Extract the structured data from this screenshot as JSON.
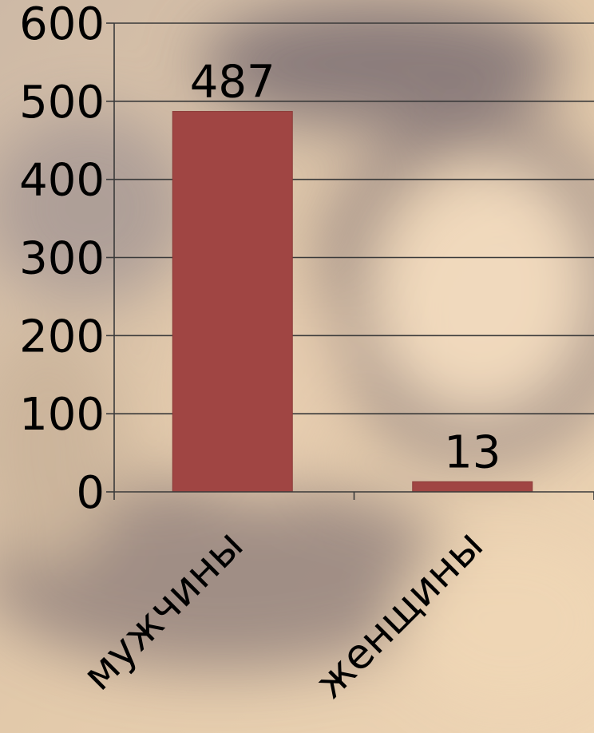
{
  "chart_data": {
    "type": "bar",
    "categories": [
      "мужчины",
      "женщины"
    ],
    "values": [
      487,
      13
    ],
    "data_labels": [
      "487",
      "13"
    ],
    "ylim": [
      0,
      600
    ],
    "yticks": [
      0,
      100,
      200,
      300,
      400,
      500,
      600
    ],
    "ytick_labels": [
      "0",
      "100",
      "200",
      "300",
      "400",
      "500",
      "600"
    ],
    "grid": true,
    "legend": "none",
    "bar_color": "#a04543",
    "grid_color": "#3a3a3a",
    "background_colors": [
      "#d8c2a5",
      "#8f7d78",
      "#efd6b4"
    ]
  }
}
